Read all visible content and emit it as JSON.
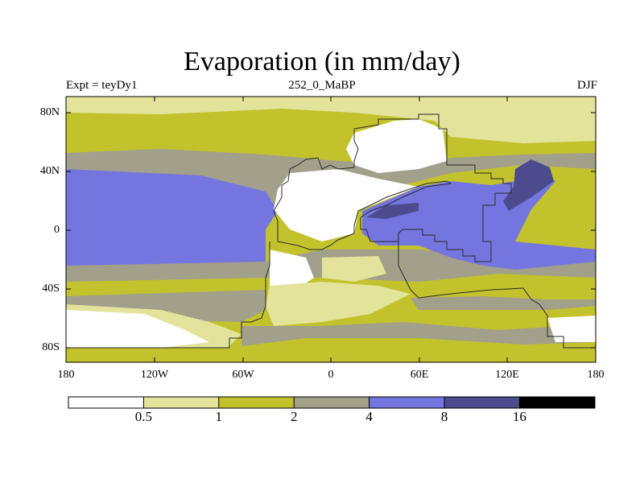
{
  "title": "Evaporation (in mm/day)",
  "subtitle_left": "Expt = teyDy1",
  "subtitle_center": "252_0_MaBP",
  "subtitle_right": "DJF",
  "y_ticks": [
    "80N",
    "40N",
    "0",
    "40S",
    "80S"
  ],
  "x_ticks": [
    "180",
    "120W",
    "60W",
    "0",
    "60E",
    "120E",
    "180"
  ],
  "colorbar": {
    "labels": [
      "0.5",
      "1",
      "2",
      "4",
      "8",
      "16"
    ],
    "colors": [
      "#ffffff",
      "#e3e39b",
      "#c2c22d",
      "#a29f8a",
      "#7575e0",
      "#4b4b8d",
      "#000000"
    ]
  }
}
